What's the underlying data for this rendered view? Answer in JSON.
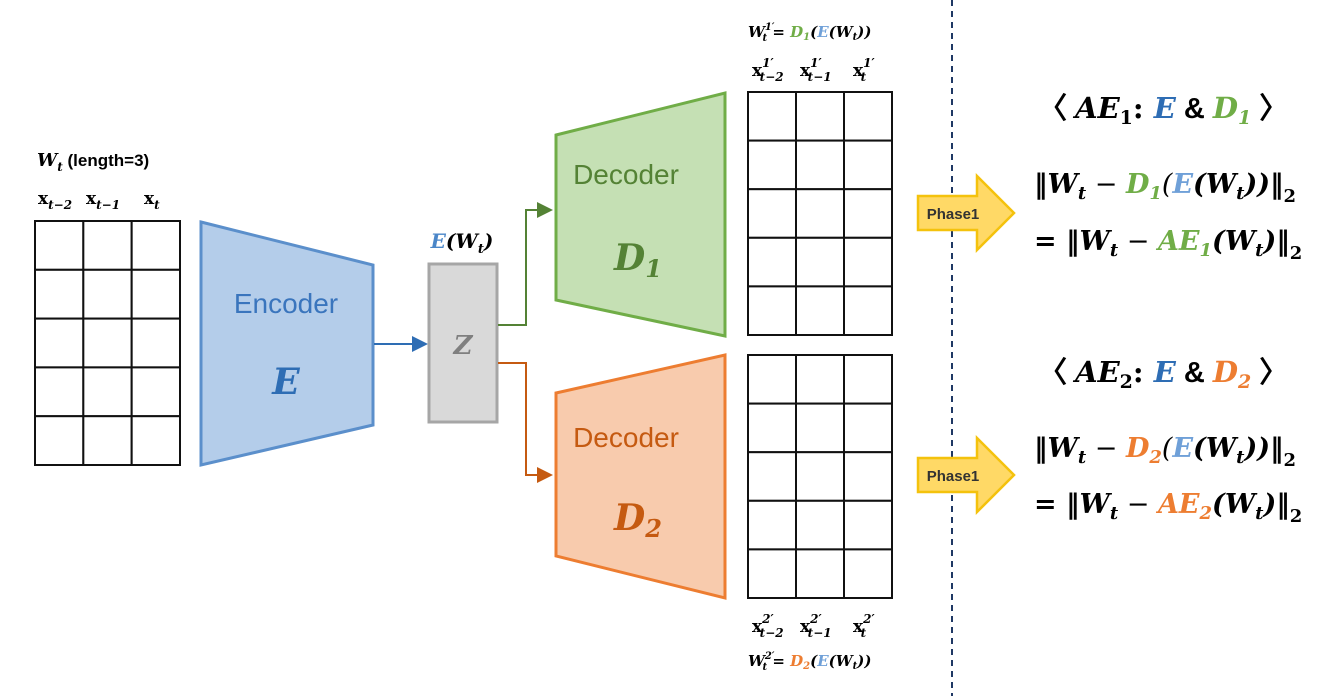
{
  "colors": {
    "blue": "#4a86c8",
    "green": "#70ad47",
    "orange": "#ed7d31",
    "gray": "#7f7f7f",
    "yellow": "#ffd966",
    "navy": "#1f3864"
  },
  "input": {
    "title_w": "W",
    "title_sub": "t",
    "title_rest": " (length=3)",
    "cols": [
      {
        "base": "x",
        "sub": "t−2"
      },
      {
        "base": "x",
        "sub": "t−1"
      },
      {
        "base": "x",
        "sub": "t"
      }
    ]
  },
  "encoder": {
    "label": "Encoder",
    "symbol": "E"
  },
  "latent": {
    "label_e": "E",
    "label_rest": "(W",
    "label_sub": "t",
    "label_close": ")",
    "symbol": "Z"
  },
  "decoder1": {
    "label": "Decoder",
    "symbol": "D",
    "sub": "1"
  },
  "decoder2": {
    "label": "Decoder",
    "symbol": "D",
    "sub": "2"
  },
  "output1": {
    "formula": {
      "lhs": "W",
      "sup": "1′",
      "sub": "t",
      "eq": " = ",
      "d": "D",
      "dsub": "1",
      "open": "(",
      "e": "E",
      "arg": "(W",
      "argsub": "t",
      "close": "))"
    },
    "cols": [
      {
        "sup": "1′",
        "sub": "t−2"
      },
      {
        "sup": "1′",
        "sub": "t−1"
      },
      {
        "sup": "1′",
        "sub": "t"
      }
    ]
  },
  "output2": {
    "formula": {
      "lhs": "W",
      "sup": "2′",
      "sub": "t",
      "eq": " = ",
      "d": "D",
      "dsub": "2",
      "open": "(",
      "e": "E",
      "arg": "(W",
      "argsub": "t",
      "close": "))"
    },
    "cols": [
      {
        "sup": "2′",
        "sub": "t−2"
      },
      {
        "sup": "2′",
        "sub": "t−1"
      },
      {
        "sup": "2′",
        "sub": "t"
      }
    ]
  },
  "phase_labels": [
    "Phase1",
    "Phase1"
  ],
  "ae1": {
    "header": {
      "open": "〈 ",
      "ae": "AE",
      "sub": "1",
      "colon": ": ",
      "e": "E",
      "amp": " & ",
      "d": "D",
      "dsub": "1",
      "close": " 〉"
    },
    "line1": {
      "start": "‖W",
      "wsub": "t",
      "minus": " − ",
      "d": "D",
      "dsub": "1",
      "open": "(",
      "e": "E",
      "arg": "(W",
      "argsub": "t",
      "close": "))‖",
      "norm": "2"
    },
    "line2": {
      "start": "= ‖W",
      "wsub": "t",
      "minus": " − ",
      "ae": "AE",
      "aesub": "1",
      "arg": "(W",
      "argsub": "t",
      "close": ")‖",
      "norm": "2"
    }
  },
  "ae2": {
    "header": {
      "open": "〈 ",
      "ae": "AE",
      "sub": "2",
      "colon": ": ",
      "e": "E",
      "amp": " & ",
      "d": "D",
      "dsub": "2",
      "close": " 〉"
    },
    "line1": {
      "start": "‖W",
      "wsub": "t",
      "minus": " − ",
      "d": "D",
      "dsub": "2",
      "open": "(",
      "e": "E",
      "arg": "(W",
      "argsub": "t",
      "close": "))‖",
      "norm": "2"
    },
    "line2": {
      "start": "= ‖W",
      "wsub": "t",
      "minus": " − ",
      "ae": "AE",
      "aesub": "2",
      "arg": "(W",
      "argsub": "t",
      "close": ")‖",
      "norm": "2"
    }
  }
}
